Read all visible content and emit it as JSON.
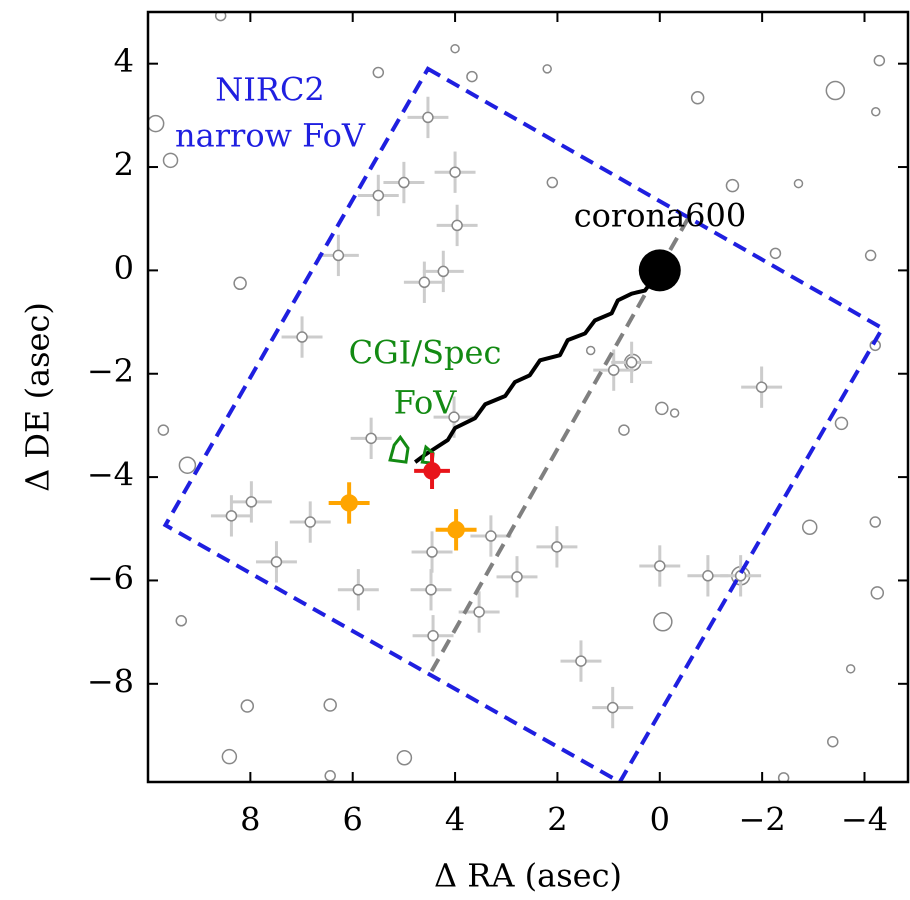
{
  "chart_data": {
    "type": "scatter",
    "xlabel": "Δ RA (asec)",
    "ylabel": "Δ DE (asec)",
    "xlim": [
      10,
      -4.85
    ],
    "ylim": [
      -9.9,
      5
    ],
    "xticks": [
      8,
      6,
      4,
      2,
      0,
      {
        "value": -2,
        "label": "−2"
      },
      {
        "value": -4,
        "label": "−4"
      }
    ],
    "yticks": [
      4,
      2,
      0,
      {
        "value": -2,
        "label": "−2"
      },
      {
        "value": -4,
        "label": "−4"
      },
      {
        "value": -6,
        "label": "−6"
      },
      {
        "value": -8,
        "label": "−8"
      }
    ],
    "series": [
      {
        "marker": "open-circle",
        "color": "#888888",
        "x": [
          9.85,
          9.56,
          8.58,
          4.0,
          5.5,
          3.67,
          2.2,
          -0.74,
          -3.43,
          -4.29,
          -4.22,
          2.1,
          -1.42,
          -2.71,
          -2.26,
          -4.12,
          8.2,
          0.53,
          1.35,
          -4.21,
          -3.55,
          -0.04,
          -0.29,
          0.7,
          9.23,
          9.7,
          -2.93,
          -4.21,
          -4.25,
          -1.58,
          -0.06,
          9.35,
          8.06,
          6.44,
          4.99,
          8.41,
          -3.38,
          -3.73,
          -2.42,
          6.44
        ],
        "values": [
          2.84,
          2.13,
          4.93,
          4.29,
          3.83,
          3.75,
          3.9,
          3.34,
          3.48,
          4.06,
          3.07,
          1.7,
          1.64,
          1.68,
          0.33,
          0.29,
          -0.25,
          -1.78,
          -1.55,
          -1.45,
          -2.96,
          -2.67,
          -2.76,
          -3.09,
          -3.77,
          -3.09,
          -4.97,
          -4.87,
          -6.24,
          -5.91,
          -6.8,
          -6.78,
          -8.43,
          -8.41,
          -9.43,
          -9.41,
          -9.12,
          -7.71,
          -9.82,
          -9.78
        ],
        "sizes": [
          8,
          7,
          5,
          4,
          5,
          5,
          4,
          6,
          9,
          5,
          4,
          5,
          6,
          4,
          5,
          5,
          6,
          8,
          4,
          5,
          6,
          6,
          4,
          5,
          8,
          5,
          7,
          5,
          6,
          9,
          9,
          5,
          6,
          6,
          7,
          7,
          5,
          4,
          5,
          5
        ]
      },
      {
        "marker": "errorbar",
        "color": "#cccccc",
        "error": 0.4,
        "x": [
          4.53,
          4.0,
          5.0,
          5.5,
          3.96,
          6.28,
          4.23,
          4.6,
          6.99,
          0.9,
          0.55,
          -1.99,
          5.64,
          4.02,
          7.98,
          8.37,
          6.83,
          7.49,
          5.89,
          4.45,
          3.3,
          2.01,
          2.79,
          4.47,
          3.53,
          4.43,
          0,
          -0.94,
          -1.58,
          1.54,
          0.92
        ],
        "values": [
          2.96,
          1.9,
          1.7,
          1.45,
          0.87,
          0.29,
          -0.02,
          -0.23,
          -1.29,
          -1.93,
          -1.78,
          -2.26,
          -3.25,
          -2.84,
          -4.48,
          -4.75,
          -4.87,
          -5.64,
          -6.18,
          -5.45,
          -5.14,
          -5.35,
          -5.93,
          -6.18,
          -6.61,
          -7.07,
          -5.72,
          -5.91,
          -5.91,
          -7.56,
          -8.46
        ]
      },
      {
        "marker": "dashed-polygon",
        "color": "#1f1fe0",
        "x": [
          4.53,
          -4.35,
          0.78,
          9.66
        ],
        "values": [
          3.9,
          -1.12,
          -9.9,
          -4.93
        ]
      },
      {
        "marker": "dashed-line",
        "color": "#808080",
        "x": [
          -0.55,
          4.53
        ],
        "values": [
          1.0,
          -7.88
        ]
      },
      {
        "marker": "line",
        "color": "#000000",
        "x": [
          4.78,
          4.59,
          4.14,
          4.0,
          3.61,
          3.41,
          3.02,
          2.83,
          2.54,
          2.34,
          1.95,
          1.8,
          1.46,
          1.27,
          0.94,
          0.82,
          0.55,
          0.29,
          0
        ],
        "values": [
          -3.71,
          -3.57,
          -3.28,
          -3.05,
          -2.86,
          -2.59,
          -2.43,
          -2.16,
          -2.03,
          -1.74,
          -1.64,
          -1.35,
          -1.22,
          -0.97,
          -0.83,
          -0.58,
          -0.45,
          -0.39,
          0
        ]
      },
      {
        "marker": "polygon",
        "color": "#138a13",
        "x": [
          5.27,
          5.19,
          5.07,
          4.92,
          4.96
        ],
        "values": [
          -3.67,
          -3.38,
          -3.23,
          -3.44,
          -3.71
        ]
      },
      {
        "marker": "polygon",
        "color": "#138a13",
        "x": [
          4.64,
          4.57,
          4.43,
          4.45
        ],
        "values": [
          -3.71,
          -3.42,
          -3.54,
          -3.73
        ]
      },
      {
        "marker": "errorbar-filled",
        "color": "#ffa500",
        "error": 0.4,
        "x": [
          6.07,
          3.98
        ],
        "values": [
          -4.5,
          -5.02
        ]
      },
      {
        "marker": "errorbar-filled",
        "color": "#e8141a",
        "error": 0.35,
        "x": [
          4.45
        ],
        "values": [
          -3.88
        ]
      },
      {
        "marker": "filled-circle",
        "color": "#000000",
        "x": [
          0
        ],
        "values": [
          0
        ],
        "sizes": [
          21
        ]
      }
    ],
    "annotations": [
      {
        "text": "NIRC2",
        "color": "#1f1fe0"
      },
      {
        "text": "narrow FoV",
        "color": "#1f1fe0"
      },
      {
        "text": "CGI/Spec",
        "color": "#138a13"
      },
      {
        "text": "FoV",
        "color": "#138a13"
      },
      {
        "text": "corona600",
        "color": "#000000"
      }
    ]
  }
}
